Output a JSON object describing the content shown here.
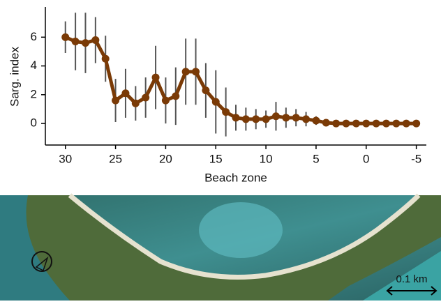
{
  "chart_data": {
    "type": "line",
    "ylabel": "Sarg. index",
    "xlabel": "Beach zone",
    "x": [
      30,
      29,
      28,
      27,
      26,
      25,
      24,
      23,
      22,
      21,
      20,
      19,
      18,
      17,
      16,
      15,
      14,
      13,
      12,
      11,
      10,
      9,
      8,
      7,
      6,
      5,
      4,
      3,
      2,
      1,
      0,
      -1,
      -2,
      -3,
      -4,
      -5
    ],
    "series": [
      {
        "name": "Sarg. index",
        "color": "#7a3a06",
        "values": [
          6.0,
          5.7,
          5.6,
          5.8,
          4.5,
          1.6,
          2.1,
          1.4,
          1.8,
          3.2,
          1.6,
          1.9,
          3.6,
          3.6,
          2.3,
          1.5,
          0.8,
          0.4,
          0.3,
          0.3,
          0.3,
          0.5,
          0.4,
          0.4,
          0.3,
          0.2,
          0.05,
          0,
          0,
          0,
          0,
          0,
          0,
          0,
          0,
          0
        ],
        "errors": [
          1.1,
          2.0,
          2.1,
          1.6,
          1.6,
          1.5,
          1.7,
          1.2,
          1.4,
          2.2,
          1.6,
          2.0,
          2.3,
          2.3,
          1.9,
          2.2,
          1.7,
          0.9,
          0.8,
          0.7,
          0.6,
          1.0,
          0.7,
          0.6,
          0.5,
          0.3,
          0.1,
          0,
          0,
          0,
          0,
          0,
          0,
          0,
          0,
          0
        ]
      }
    ],
    "xlim": [
      32,
      -6
    ],
    "xticks": [
      30,
      25,
      20,
      15,
      10,
      5,
      0,
      -5
    ],
    "ylim": [
      -1.5,
      8.1
    ],
    "yticks": [
      0,
      2,
      4,
      6
    ]
  },
  "photo": {
    "scale_label": "0.1 km"
  }
}
